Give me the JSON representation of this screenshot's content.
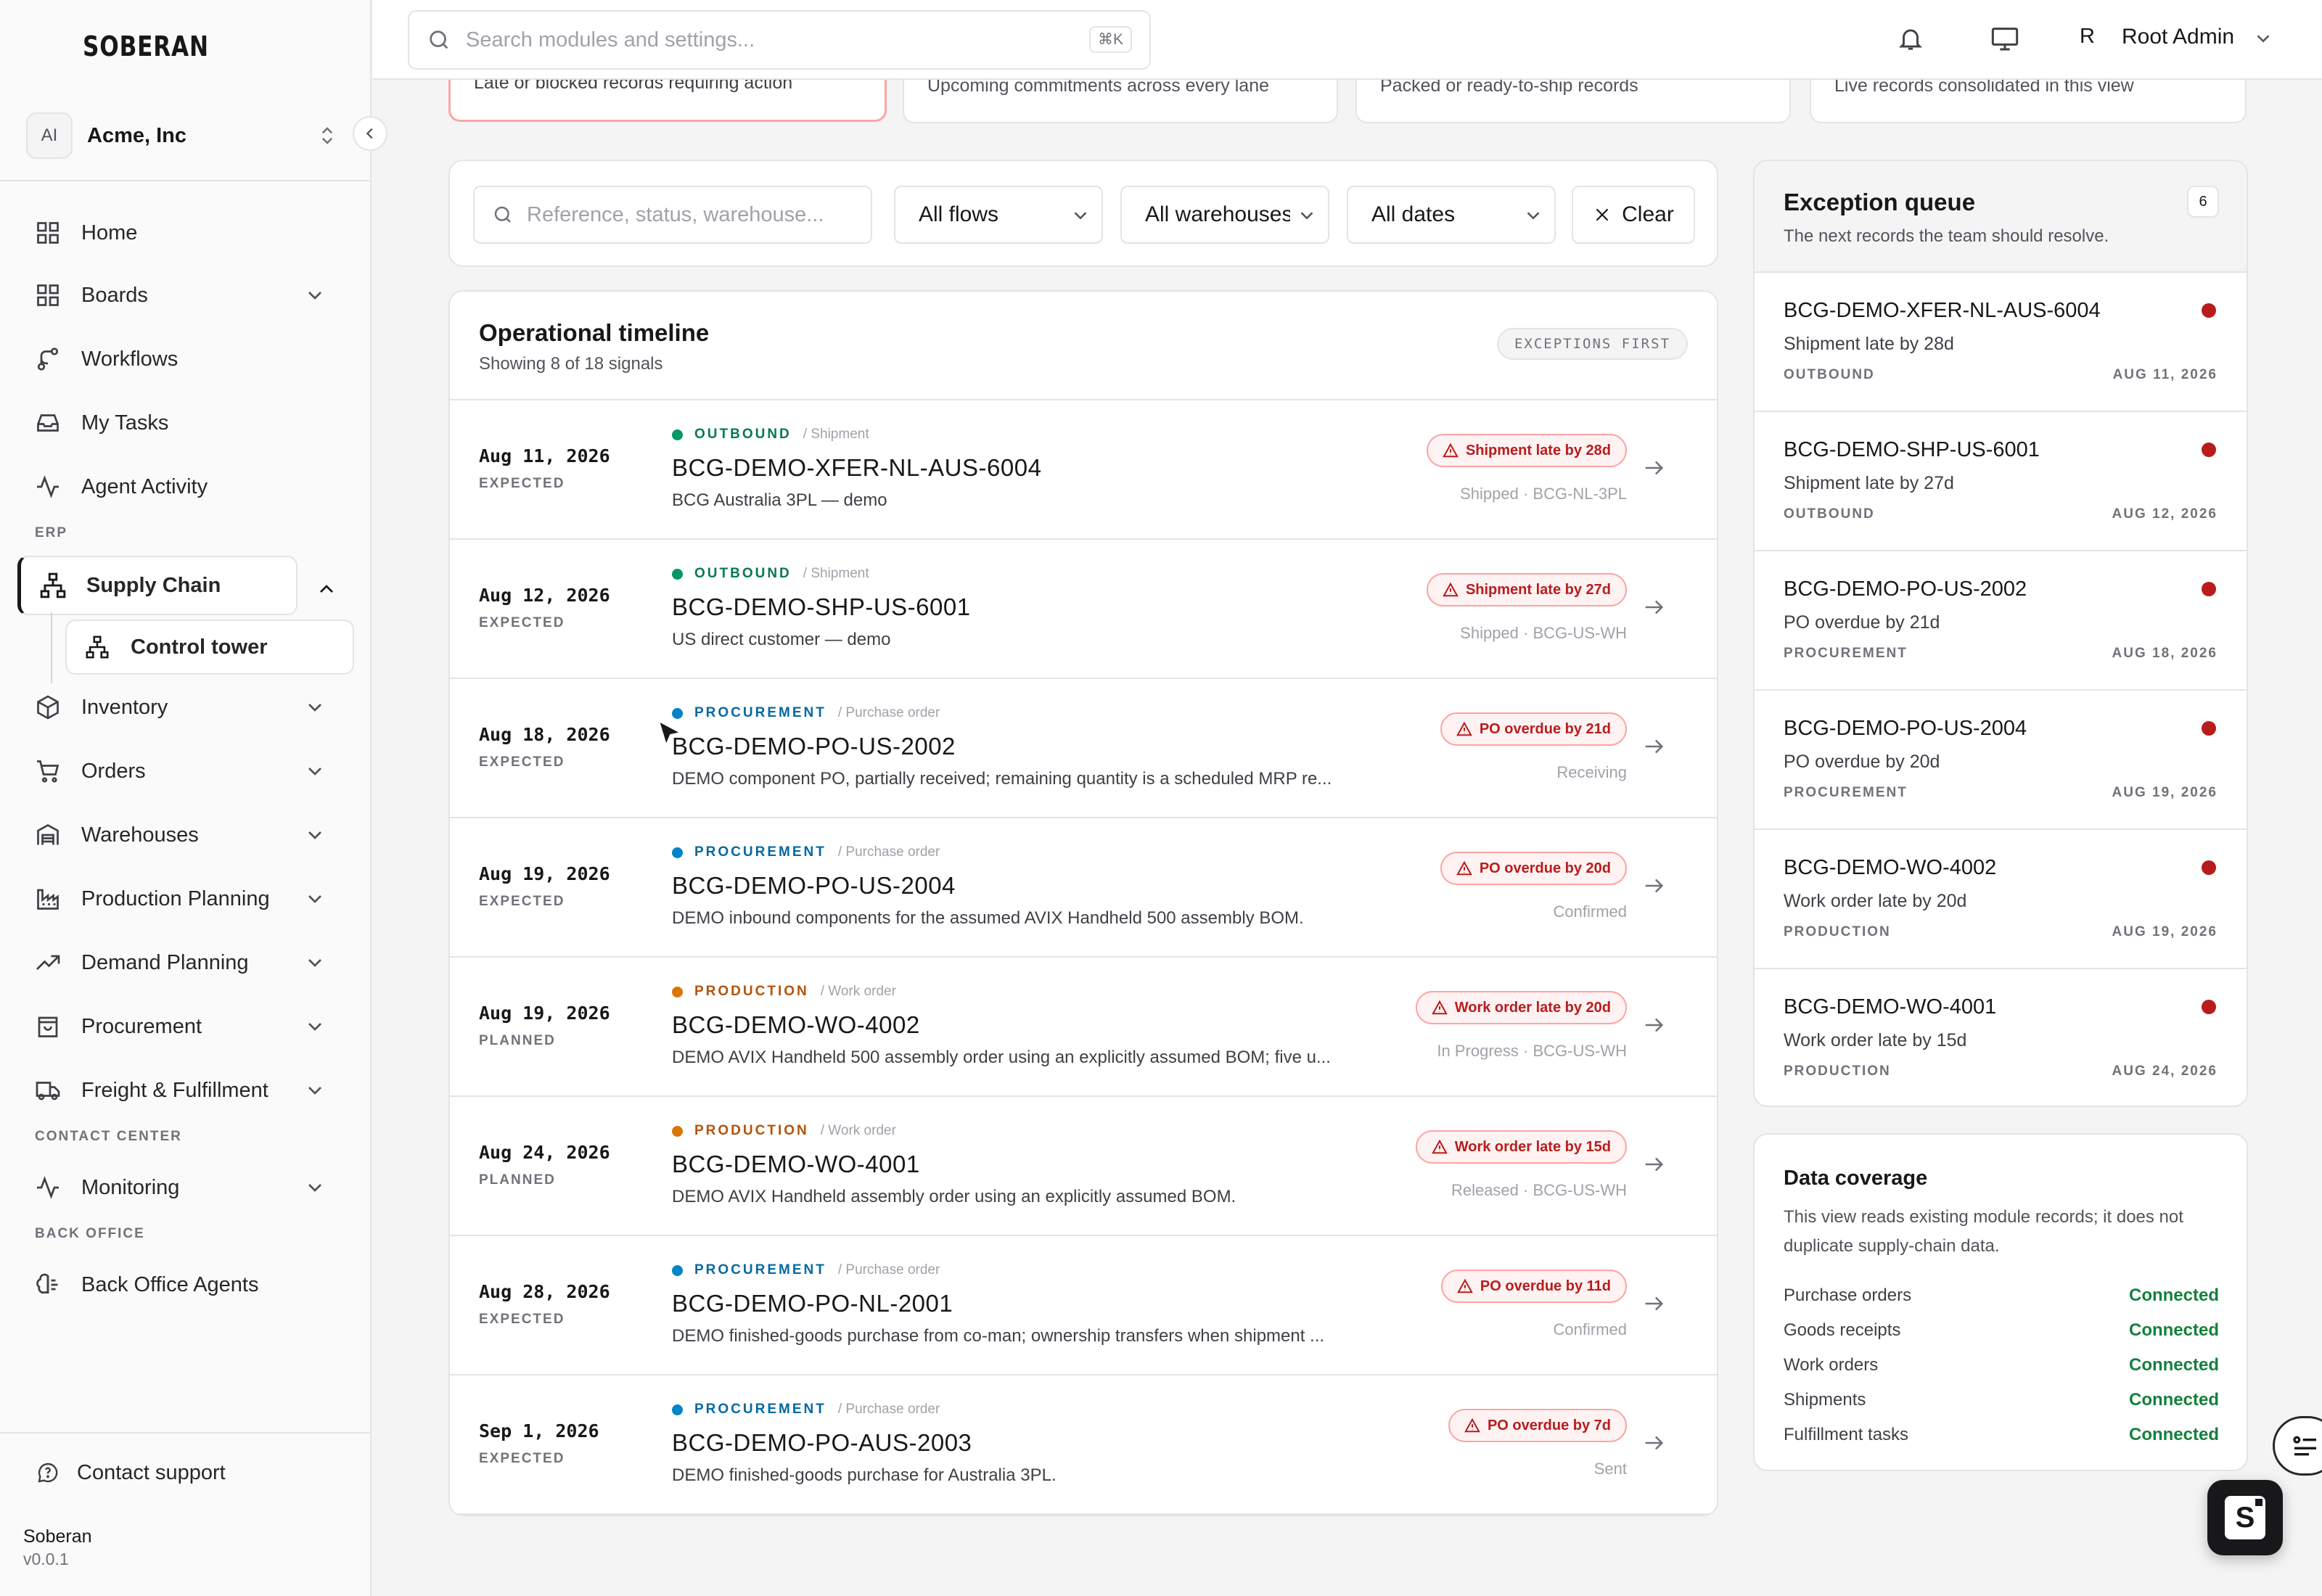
{
  "sidebar": {
    "logo": "SOBERAN",
    "org": {
      "initials": "AI",
      "name": "Acme, Inc"
    },
    "items": [
      {
        "label": "Home",
        "icon": "home-grid-icon"
      },
      {
        "label": "Boards",
        "icon": "boards-grid-icon"
      },
      {
        "label": "Workflows",
        "icon": "workflow-icon"
      },
      {
        "label": "My Tasks",
        "icon": "inbox-icon"
      },
      {
        "label": "Agent Activity",
        "icon": "activity-icon"
      }
    ],
    "section_erp": "ERP",
    "supply_chain": "Supply Chain",
    "control_tower": "Control tower",
    "erp_items": [
      {
        "label": "Inventory",
        "icon": "box-icon"
      },
      {
        "label": "Orders",
        "icon": "cart-icon"
      },
      {
        "label": "Warehouses",
        "icon": "warehouse-icon"
      },
      {
        "label": "Production Planning",
        "icon": "factory-icon"
      },
      {
        "label": "Demand Planning",
        "icon": "trend-icon"
      },
      {
        "label": "Procurement",
        "icon": "bag-icon"
      },
      {
        "label": "Freight & Fulfillment",
        "icon": "truck-icon"
      }
    ],
    "section_contact": "CONTACT CENTER",
    "monitoring": "Monitoring",
    "section_back_office": "BACK OFFICE",
    "back_office_agents": "Back Office Agents",
    "contact_support": "Contact support",
    "brand": "Soberan",
    "version": "v0.0.1"
  },
  "topbar": {
    "search_placeholder": "Search modules and settings...",
    "shortcut": "⌘K",
    "user_initial": "R",
    "user_name": "Root Admin"
  },
  "kpis": [
    "Late or blocked records requiring action",
    "Upcoming commitments across every lane",
    "Packed or ready-to-ship records",
    "Live records consolidated in this view"
  ],
  "filters": {
    "search_placeholder": "Reference, status, warehouse...",
    "flows": "All flows",
    "warehouses": "All warehouses",
    "dates": "All dates",
    "clear": "Clear"
  },
  "timeline": {
    "title": "Operational timeline",
    "subtitle": "Showing 8 of 18 signals",
    "badge": "EXCEPTIONS FIRST",
    "rows": [
      {
        "date": "Aug 11, 2026",
        "date_status": "EXPECTED",
        "flow": "OUTBOUND",
        "kind": "/ Shipment",
        "ref": "BCG-DEMO-XFER-NL-AUS-6004",
        "desc": "BCG Australia 3PL — demo",
        "pill": "Shipment late by 28d",
        "status": "Shipped · BCG-NL-3PL"
      },
      {
        "date": "Aug 12, 2026",
        "date_status": "EXPECTED",
        "flow": "OUTBOUND",
        "kind": "/ Shipment",
        "ref": "BCG-DEMO-SHP-US-6001",
        "desc": "US direct customer — demo",
        "pill": "Shipment late by 27d",
        "status": "Shipped · BCG-US-WH"
      },
      {
        "date": "Aug 18, 2026",
        "date_status": "EXPECTED",
        "flow": "PROCUREMENT",
        "kind": "/ Purchase order",
        "ref": "BCG-DEMO-PO-US-2002",
        "desc": "DEMO component PO, partially received; remaining quantity is a scheduled MRP re...",
        "pill": "PO overdue by 21d",
        "status": "Receiving"
      },
      {
        "date": "Aug 19, 2026",
        "date_status": "EXPECTED",
        "flow": "PROCUREMENT",
        "kind": "/ Purchase order",
        "ref": "BCG-DEMO-PO-US-2004",
        "desc": "DEMO inbound components for the assumed AVIX Handheld 500 assembly BOM.",
        "pill": "PO overdue by 20d",
        "status": "Confirmed"
      },
      {
        "date": "Aug 19, 2026",
        "date_status": "PLANNED",
        "flow": "PRODUCTION",
        "kind": "/ Work order",
        "ref": "BCG-DEMO-WO-4002",
        "desc": "DEMO AVIX Handheld 500 assembly order using an explicitly assumed BOM; five u...",
        "pill": "Work order late by 20d",
        "status": "In Progress · BCG-US-WH"
      },
      {
        "date": "Aug 24, 2026",
        "date_status": "PLANNED",
        "flow": "PRODUCTION",
        "kind": "/ Work order",
        "ref": "BCG-DEMO-WO-4001",
        "desc": "DEMO AVIX Handheld assembly order using an explicitly assumed BOM.",
        "pill": "Work order late by 15d",
        "status": "Released · BCG-US-WH"
      },
      {
        "date": "Aug 28, 2026",
        "date_status": "EXPECTED",
        "flow": "PROCUREMENT",
        "kind": "/ Purchase order",
        "ref": "BCG-DEMO-PO-NL-2001",
        "desc": "DEMO finished-goods purchase from co-man; ownership transfers when shipment ...",
        "pill": "PO overdue by 11d",
        "status": "Confirmed"
      },
      {
        "date": "Sep 1, 2026",
        "date_status": "EXPECTED",
        "flow": "PROCUREMENT",
        "kind": "/ Purchase order",
        "ref": "BCG-DEMO-PO-AUS-2003",
        "desc": "DEMO finished-goods purchase for Australia 3PL.",
        "pill": "PO overdue by 7d",
        "status": "Sent"
      }
    ]
  },
  "flow_colors": {
    "OUTBOUND": "#059669",
    "PROCUREMENT": "#0284c7",
    "PRODUCTION": "#d97706"
  },
  "flow_text_colors": {
    "OUTBOUND": "#047857",
    "PROCUREMENT": "#0369a1",
    "PRODUCTION": "#b45309"
  },
  "exceptions": {
    "title": "Exception queue",
    "subtitle": "The next records the team should resolve.",
    "count": "6",
    "items": [
      {
        "ref": "BCG-DEMO-XFER-NL-AUS-6004",
        "reason": "Shipment late by 28d",
        "flow": "OUTBOUND",
        "date": "AUG 11, 2026"
      },
      {
        "ref": "BCG-DEMO-SHP-US-6001",
        "reason": "Shipment late by 27d",
        "flow": "OUTBOUND",
        "date": "AUG 12, 2026"
      },
      {
        "ref": "BCG-DEMO-PO-US-2002",
        "reason": "PO overdue by 21d",
        "flow": "PROCUREMENT",
        "date": "AUG 18, 2026"
      },
      {
        "ref": "BCG-DEMO-PO-US-2004",
        "reason": "PO overdue by 20d",
        "flow": "PROCUREMENT",
        "date": "AUG 19, 2026"
      },
      {
        "ref": "BCG-DEMO-WO-4002",
        "reason": "Work order late by 20d",
        "flow": "PRODUCTION",
        "date": "AUG 19, 2026"
      },
      {
        "ref": "BCG-DEMO-WO-4001",
        "reason": "Work order late by 15d",
        "flow": "PRODUCTION",
        "date": "AUG 24, 2026"
      }
    ]
  },
  "coverage": {
    "title": "Data coverage",
    "desc": "This view reads existing module records; it does not duplicate supply-chain data.",
    "rows": [
      {
        "label": "Purchase orders",
        "status": "Connected"
      },
      {
        "label": "Goods receipts",
        "status": "Connected"
      },
      {
        "label": "Work orders",
        "status": "Connected"
      },
      {
        "label": "Shipments",
        "status": "Connected"
      },
      {
        "label": "Fulfillment tasks",
        "status": "Connected"
      }
    ]
  },
  "fab_letter": "S"
}
